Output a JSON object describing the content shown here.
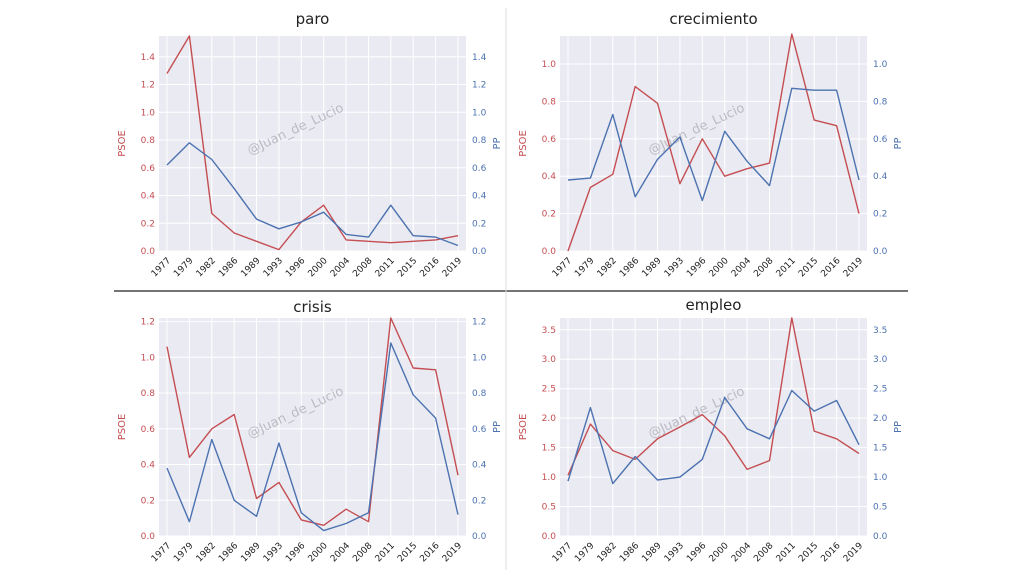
{
  "watermark": "@Juan_de_Lucio",
  "colors": {
    "psoe": "#c44e52",
    "pp": "#4c72b0",
    "plot_bg": "#eaeaf2",
    "grid": "#ffffff"
  },
  "chart_data": [
    {
      "type": "line",
      "title": "paro",
      "xlabel": "",
      "ylabel": "PSOE",
      "ylabel_right": "PP",
      "x": [
        1977,
        1979,
        1982,
        1986,
        1989,
        1993,
        1996,
        2000,
        2004,
        2008,
        2011,
        2015,
        2016,
        2019
      ],
      "ylim": [
        0,
        1.55
      ],
      "yticks": [
        0.0,
        0.2,
        0.4,
        0.6,
        0.8,
        1.0,
        1.2,
        1.4
      ],
      "ylim_right": [
        0,
        1.55
      ],
      "yticks_right": [
        0.0,
        0.2,
        0.4,
        0.6,
        0.8,
        1.0,
        1.2,
        1.4
      ],
      "series": [
        {
          "name": "PSOE",
          "axis": "left",
          "values": [
            1.28,
            1.55,
            0.27,
            0.13,
            0.07,
            0.01,
            0.21,
            0.33,
            0.08,
            0.07,
            0.06,
            0.07,
            0.08,
            0.11
          ]
        },
        {
          "name": "PP",
          "axis": "right",
          "values": [
            0.62,
            0.78,
            0.66,
            0.45,
            0.23,
            0.16,
            0.21,
            0.28,
            0.12,
            0.1,
            0.33,
            0.11,
            0.1,
            0.04
          ]
        }
      ],
      "grid": true
    },
    {
      "type": "line",
      "title": "crecimiento",
      "xlabel": "",
      "ylabel": "PSOE",
      "ylabel_right": "PP",
      "x": [
        1977,
        1979,
        1982,
        1986,
        1989,
        1993,
        1996,
        2000,
        2004,
        2008,
        2011,
        2015,
        2016,
        2019
      ],
      "ylim": [
        0,
        1.15
      ],
      "yticks": [
        0.0,
        0.2,
        0.4,
        0.6,
        0.8,
        1.0
      ],
      "ylim_right": [
        0,
        1.15
      ],
      "yticks_right": [
        0.0,
        0.2,
        0.4,
        0.6,
        0.8,
        1.0
      ],
      "series": [
        {
          "name": "PSOE",
          "axis": "left",
          "values": [
            0.0,
            0.34,
            0.41,
            0.88,
            0.79,
            0.36,
            0.6,
            0.4,
            0.44,
            0.47,
            1.16,
            0.7,
            0.67,
            0.2
          ]
        },
        {
          "name": "PP",
          "axis": "right",
          "values": [
            0.38,
            0.39,
            0.73,
            0.29,
            0.49,
            0.61,
            0.27,
            0.64,
            0.48,
            0.35,
            0.87,
            0.86,
            0.86,
            0.38
          ]
        }
      ],
      "grid": true
    },
    {
      "type": "line",
      "title": "crisis",
      "xlabel": "",
      "ylabel": "PSOE",
      "ylabel_right": "PP",
      "x": [
        1977,
        1979,
        1982,
        1986,
        1989,
        1993,
        1996,
        2000,
        2004,
        2008,
        2011,
        2015,
        2016,
        2019
      ],
      "ylim": [
        0,
        1.22
      ],
      "yticks": [
        0.0,
        0.2,
        0.4,
        0.6,
        0.8,
        1.0,
        1.2
      ],
      "ylim_right": [
        0,
        1.22
      ],
      "yticks_right": [
        0.0,
        0.2,
        0.4,
        0.6,
        0.8,
        1.0,
        1.2
      ],
      "series": [
        {
          "name": "PSOE",
          "axis": "left",
          "values": [
            1.06,
            0.44,
            0.6,
            0.68,
            0.21,
            0.3,
            0.09,
            0.06,
            0.15,
            0.08,
            1.22,
            0.94,
            0.93,
            0.34
          ]
        },
        {
          "name": "PP",
          "axis": "right",
          "values": [
            0.38,
            0.08,
            0.54,
            0.2,
            0.11,
            0.52,
            0.13,
            0.03,
            0.07,
            0.13,
            1.08,
            0.79,
            0.66,
            0.12
          ]
        }
      ],
      "grid": true
    },
    {
      "type": "line",
      "title": "empleo",
      "xlabel": "",
      "ylabel": "PSOE",
      "ylabel_right": "PP",
      "x": [
        1977,
        1979,
        1982,
        1986,
        1989,
        1993,
        1996,
        2000,
        2004,
        2008,
        2011,
        2015,
        2016,
        2019
      ],
      "ylim": [
        0,
        3.7
      ],
      "yticks": [
        0.0,
        0.5,
        1.0,
        1.5,
        2.0,
        2.5,
        3.0,
        3.5
      ],
      "ylim_right": [
        0,
        3.7
      ],
      "yticks_right": [
        0.0,
        0.5,
        1.0,
        1.5,
        2.0,
        2.5,
        3.0,
        3.5
      ],
      "series": [
        {
          "name": "PSOE",
          "axis": "left",
          "values": [
            1.03,
            1.9,
            1.45,
            1.3,
            1.65,
            1.85,
            2.06,
            1.7,
            1.13,
            1.28,
            3.7,
            1.78,
            1.65,
            1.4
          ]
        },
        {
          "name": "PP",
          "axis": "right",
          "values": [
            0.93,
            2.18,
            0.89,
            1.35,
            0.95,
            1.0,
            1.3,
            2.35,
            1.82,
            1.65,
            2.47,
            2.12,
            2.3,
            1.55
          ]
        }
      ],
      "grid": true
    }
  ]
}
